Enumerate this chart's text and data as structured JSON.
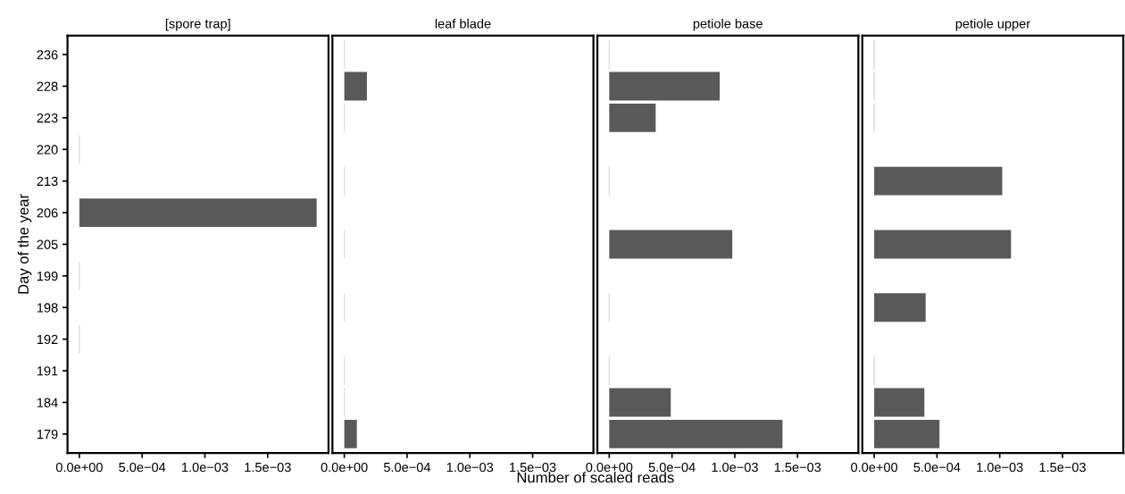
{
  "chart_data": [
    {
      "type": "bar",
      "orientation": "horizontal",
      "title": "[spore trap]",
      "ylabel": "Day of the year",
      "categories": [
        "236",
        "228",
        "223",
        "220",
        "213",
        "206",
        "205",
        "199",
        "198",
        "192",
        "191",
        "184",
        "179"
      ],
      "values": [
        null,
        null,
        null,
        0,
        null,
        0.00189,
        null,
        0,
        null,
        0,
        null,
        null,
        null
      ],
      "colors": [
        null,
        null,
        null,
        "#d9d9d9",
        null,
        "#595959",
        null,
        "#d9d9d9",
        null,
        "#d9d9d9",
        null,
        null,
        null
      ],
      "xlim": [
        -9.45e-05,
        0.0019845
      ],
      "xticks": [
        {
          "value": 0,
          "label": "0.0e+00"
        },
        {
          "value": 0.0005,
          "label": "5.0e−04"
        },
        {
          "value": 0.001,
          "label": "1.0e−03"
        },
        {
          "value": 0.0015,
          "label": "1.5e−03"
        }
      ],
      "grid": false
    },
    {
      "type": "bar",
      "orientation": "horizontal",
      "title": "leaf blade",
      "xlabel": "Number of scaled reads",
      "categories": [
        "236",
        "228",
        "223",
        "220",
        "213",
        "206",
        "205",
        "199",
        "198",
        "192",
        "191",
        "184",
        "179"
      ],
      "values": [
        0,
        0.00018,
        0,
        null,
        0,
        null,
        0,
        null,
        0,
        null,
        0,
        0,
        0.0001
      ],
      "colors": [
        "#d9d9d9",
        "#595959",
        "#d9d9d9",
        null,
        "#d9d9d9",
        null,
        "#d9d9d9",
        null,
        "#d9d9d9",
        null,
        "#d9d9d9",
        "#d9d9d9",
        "#595959"
      ],
      "xlim": [
        -9.45e-05,
        0.0019845
      ],
      "xticks": [
        {
          "value": 0,
          "label": "0.0e+00"
        },
        {
          "value": 0.0005,
          "label": "5.0e−04"
        },
        {
          "value": 0.001,
          "label": "1.0e−03"
        },
        {
          "value": 0.0015,
          "label": "1.5e−03"
        }
      ],
      "tick_labels": "x",
      "grid": false
    },
    {
      "type": "bar",
      "orientation": "horizontal",
      "title": "petiole base",
      "categories": [
        "236",
        "228",
        "223",
        "220",
        "213",
        "206",
        "205",
        "199",
        "198",
        "192",
        "191",
        "184",
        "179"
      ],
      "values": [
        0,
        0.00088,
        0.00037,
        null,
        0,
        null,
        0.00098,
        null,
        0,
        null,
        0,
        0.00049,
        0.00138
      ],
      "colors": [
        "#d9d9d9",
        "#595959",
        "#595959",
        null,
        "#d9d9d9",
        null,
        "#595959",
        null,
        "#d9d9d9",
        null,
        "#d9d9d9",
        "#595959",
        "#595959"
      ],
      "xlim": [
        -9.45e-05,
        0.0019845
      ],
      "xticks": [
        {
          "value": 0,
          "label": "0.0e+00"
        },
        {
          "value": 0.0005,
          "label": "5.0e−04"
        },
        {
          "value": 0.001,
          "label": "1.0e−03"
        },
        {
          "value": 0.0015,
          "label": "1.5e−03"
        }
      ],
      "tick_labels": "x",
      "grid": false
    },
    {
      "type": "bar",
      "orientation": "horizontal",
      "title": "petiole upper",
      "categories": [
        "236",
        "228",
        "223",
        "220",
        "213",
        "206",
        "205",
        "199",
        "198",
        "192",
        "191",
        "184",
        "179"
      ],
      "values": [
        0,
        0,
        0,
        null,
        0.00102,
        null,
        0.00109,
        null,
        0.00041,
        null,
        0,
        0.0004,
        0.00052
      ],
      "colors": [
        "#d9d9d9",
        "#d9d9d9",
        "#d9d9d9",
        null,
        "#595959",
        null,
        "#595959",
        null,
        "#595959",
        null,
        "#d9d9d9",
        "#595959",
        "#595959"
      ],
      "xlim": [
        -9.45e-05,
        0.0019845
      ],
      "xticks": [
        {
          "value": 0,
          "label": "0.0e+00"
        },
        {
          "value": 0.0005,
          "label": "5.0e−04"
        },
        {
          "value": 0.001,
          "label": "1.0e−03"
        },
        {
          "value": 0.0015,
          "label": "1.5e−03"
        }
      ],
      "tick_labels": "x",
      "grid": false
    }
  ]
}
